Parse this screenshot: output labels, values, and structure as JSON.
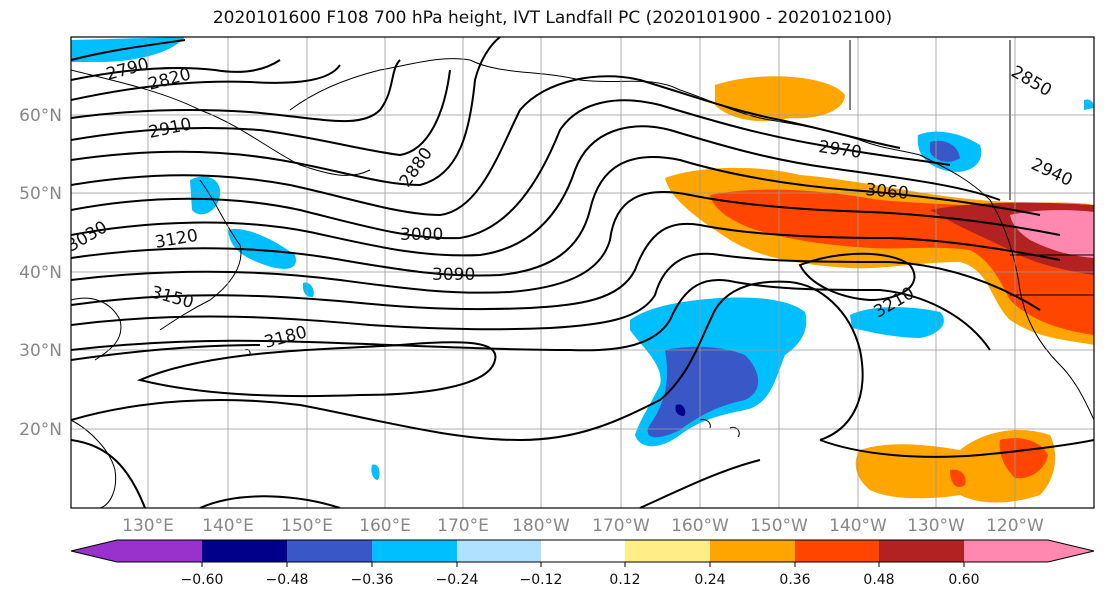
{
  "title": "2020101600 F108 700 hPa height, IVT Landfall PC (2020101900 - 2020102100)",
  "lat_labels": [
    "60°N",
    "50°N",
    "40°N",
    "30°N",
    "20°N"
  ],
  "lon_labels": [
    "130°E",
    "140°E",
    "150°E",
    "160°E",
    "170°E",
    "180°W",
    "170°W",
    "160°W",
    "150°W",
    "140°W",
    "130°W",
    "120°W"
  ],
  "contour_labels": [
    "2790",
    "2820",
    "2850",
    "2880",
    "2910",
    "2940",
    "2970",
    "3000",
    "3030",
    "3060",
    "3090",
    "3120",
    "3150",
    "3180",
    "3210"
  ],
  "colorbar": {
    "colors": [
      "#9932cc",
      "#00008b",
      "#3a57c8",
      "#00bfff",
      "#b0e2ff",
      "#ffffff",
      "#ffee88",
      "#ffa500",
      "#ff4500",
      "#b22222",
      "#ff88b0"
    ],
    "tick_labels": [
      "−0.60",
      "−0.48",
      "−0.36",
      "−0.24",
      "−0.12",
      "0.12",
      "0.24",
      "0.36",
      "0.48",
      "0.60"
    ]
  }
}
